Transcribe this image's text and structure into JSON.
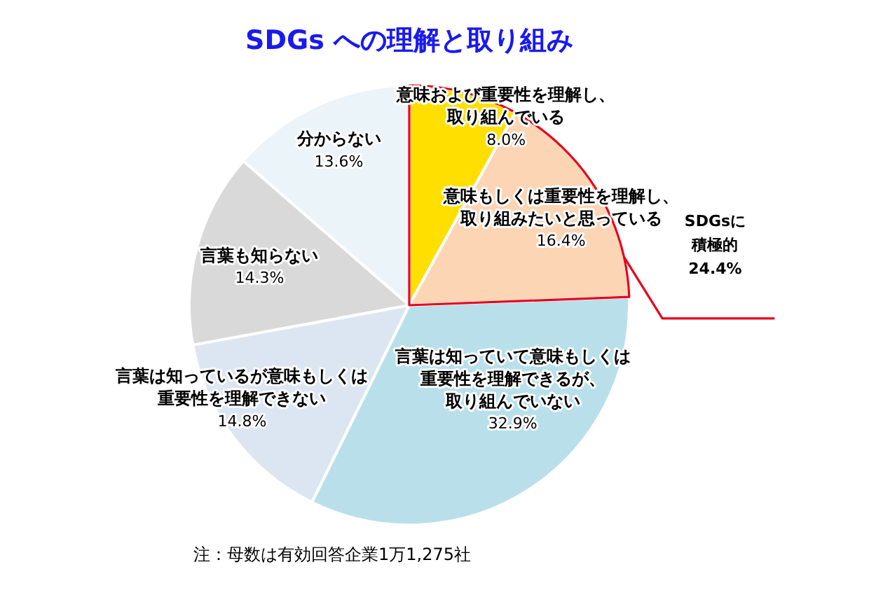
{
  "chart_data": {
    "type": "pie",
    "title": "SDGs への理解と取り組み",
    "categories": [
      "意味および重要性を理解し、取り組んでいる",
      "意味もしくは重要性を理解し、取り組みたいと思っている",
      "言葉は知っていて意味もしくは重要性を理解できるが、取り組んでいない",
      "言葉は知っているが意味もしくは重要性を理解できない",
      "言葉も知らない",
      "分からない"
    ],
    "values": [
      8.0,
      16.4,
      32.9,
      14.8,
      14.3,
      13.6
    ],
    "value_labels": [
      "8.0%",
      "16.4%",
      "32.9%",
      "14.8%",
      "14.3%",
      "13.6%"
    ],
    "colors": [
      "#ffdf00",
      "#fcd5b5",
      "#b9e0ea",
      "#dce6f2",
      "#d9d9d9",
      "#ebf4f9"
    ],
    "annotations": [
      "SDGsに積極的 24.4%",
      "注：母数は有効回答企業1万1,275社"
    ],
    "legend": false
  }
}
